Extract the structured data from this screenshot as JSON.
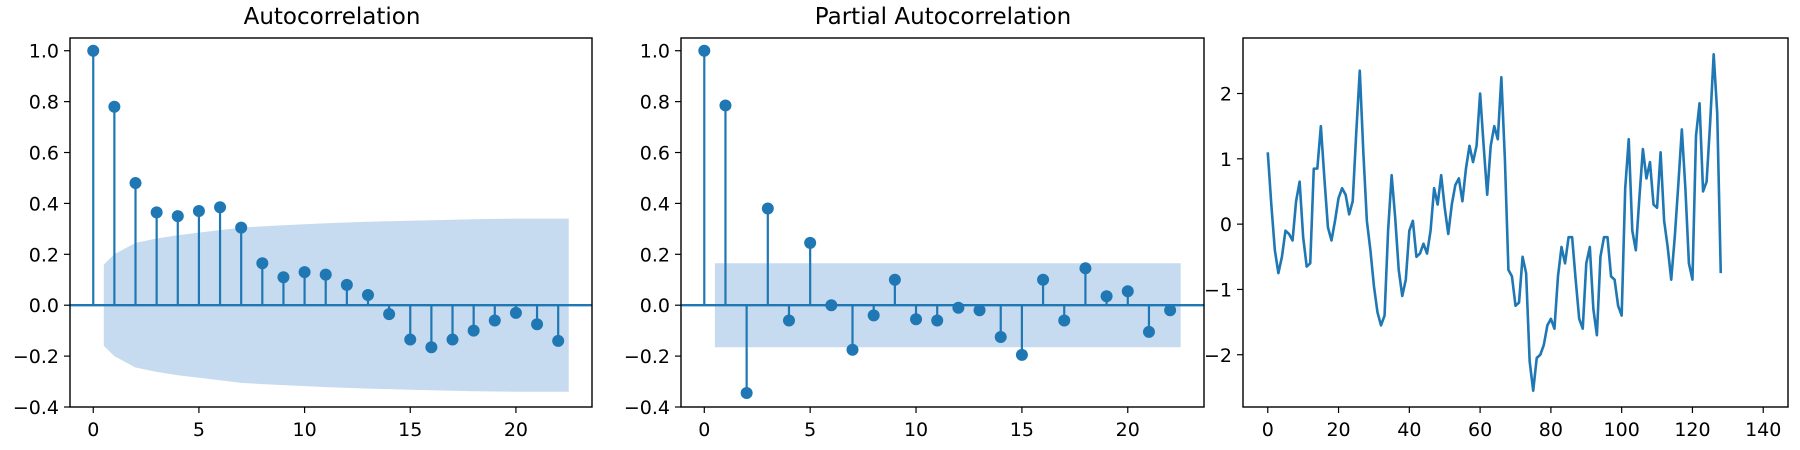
{
  "colors": {
    "series": "#1f77b4",
    "band": "#c6dbef",
    "axis": "#000000",
    "background": "#ffffff"
  },
  "chart_data": [
    {
      "type": "stem",
      "title": "Autocorrelation",
      "lags": [
        0,
        1,
        2,
        3,
        4,
        5,
        6,
        7,
        8,
        9,
        10,
        11,
        12,
        13,
        14,
        15,
        16,
        17,
        18,
        19,
        20,
        21,
        22
      ],
      "values": [
        1.0,
        0.78,
        0.48,
        0.365,
        0.35,
        0.37,
        0.385,
        0.305,
        0.165,
        0.11,
        0.13,
        0.12,
        0.08,
        0.04,
        -0.035,
        -0.135,
        -0.165,
        -0.135,
        -0.1,
        -0.06,
        -0.03,
        -0.075,
        -0.14
      ],
      "confidence_band": {
        "x": [
          0.5,
          1,
          2,
          3,
          4,
          5,
          6,
          7,
          8,
          9,
          10,
          11,
          12,
          13,
          14,
          15,
          16,
          17,
          18,
          19,
          20,
          21,
          22,
          22.5
        ],
        "upper": [
          0.16,
          0.2,
          0.245,
          0.262,
          0.275,
          0.285,
          0.295,
          0.305,
          0.31,
          0.314,
          0.318,
          0.322,
          0.325,
          0.328,
          0.33,
          0.332,
          0.334,
          0.336,
          0.338,
          0.339,
          0.34,
          0.34,
          0.34,
          0.34
        ]
      },
      "xlim": [
        -1.1,
        23.6
      ],
      "ylim": [
        -0.4,
        1.05
      ],
      "xticks": [
        "0",
        "5",
        "10",
        "15",
        "20"
      ],
      "yticks": [
        "1.0",
        "0.8",
        "0.6",
        "0.4",
        "0.2",
        "0.0",
        "−0.2",
        "−0.4"
      ],
      "grid": false
    },
    {
      "type": "stem",
      "title": "Partial Autocorrelation",
      "lags": [
        0,
        1,
        2,
        3,
        4,
        5,
        6,
        7,
        8,
        9,
        10,
        11,
        12,
        13,
        14,
        15,
        16,
        17,
        18,
        19,
        20,
        21,
        22
      ],
      "values": [
        1.0,
        0.785,
        -0.345,
        0.38,
        -0.06,
        0.245,
        0.0,
        -0.175,
        -0.04,
        0.1,
        -0.055,
        -0.06,
        -0.01,
        -0.02,
        -0.125,
        -0.195,
        0.1,
        -0.06,
        0.145,
        0.035,
        0.055,
        -0.105,
        -0.02
      ],
      "confidence_band": {
        "x_range": [
          0.5,
          22.5
        ],
        "upper": 0.165,
        "lower": -0.165
      },
      "xlim": [
        -1.1,
        23.6
      ],
      "ylim": [
        -0.4,
        1.05
      ],
      "xticks": [
        "0",
        "5",
        "10",
        "15",
        "20"
      ],
      "yticks": [
        "1.0",
        "0.8",
        "0.6",
        "0.4",
        "0.2",
        "0.0",
        "−0.2",
        "−0.4"
      ],
      "grid": false
    },
    {
      "type": "line",
      "title": "",
      "x_start": 0,
      "values": [
        1.1,
        0.3,
        -0.4,
        -0.75,
        -0.5,
        -0.1,
        -0.15,
        -0.25,
        0.35,
        0.65,
        -0.2,
        -0.65,
        -0.6,
        0.85,
        0.85,
        1.5,
        0.7,
        -0.05,
        -0.25,
        0.05,
        0.4,
        0.55,
        0.45,
        0.15,
        0.35,
        1.4,
        2.35,
        1.1,
        0.05,
        -0.4,
        -0.95,
        -1.35,
        -1.55,
        -1.4,
        -0.1,
        0.75,
        0.1,
        -0.7,
        -1.1,
        -0.85,
        -0.1,
        0.05,
        -0.5,
        -0.45,
        -0.3,
        -0.45,
        -0.1,
        0.55,
        0.3,
        0.75,
        0.25,
        -0.15,
        0.3,
        0.6,
        0.7,
        0.35,
        0.85,
        1.2,
        0.95,
        1.2,
        2.0,
        1.2,
        0.45,
        1.2,
        1.5,
        1.3,
        2.25,
        1.0,
        -0.7,
        -0.8,
        -1.25,
        -1.2,
        -0.5,
        -0.75,
        -2.1,
        -2.55,
        -2.05,
        -2.0,
        -1.85,
        -1.55,
        -1.45,
        -1.6,
        -0.8,
        -0.35,
        -0.6,
        -0.2,
        -0.2,
        -0.85,
        -1.45,
        -1.6,
        -0.6,
        -0.35,
        -1.3,
        -1.7,
        -0.5,
        -0.2,
        -0.2,
        -0.8,
        -0.85,
        -1.25,
        -1.4,
        0.55,
        1.3,
        -0.1,
        -0.4,
        0.4,
        1.15,
        0.7,
        0.95,
        0.3,
        0.25,
        1.1,
        0.05,
        -0.35,
        -0.85,
        -0.2,
        0.6,
        1.45,
        0.55,
        -0.6,
        -0.85,
        1.35,
        1.85,
        0.5,
        0.65,
        1.55,
        2.6,
        1.7,
        -0.75
      ],
      "xlim": [
        -7,
        147
      ],
      "ylim": [
        -2.8,
        2.85
      ],
      "xticks": [
        "0",
        "20",
        "40",
        "60",
        "80",
        "100",
        "120",
        "140"
      ],
      "yticks": [
        "2",
        "1",
        "0",
        "−1",
        "−2"
      ],
      "grid": false
    }
  ]
}
